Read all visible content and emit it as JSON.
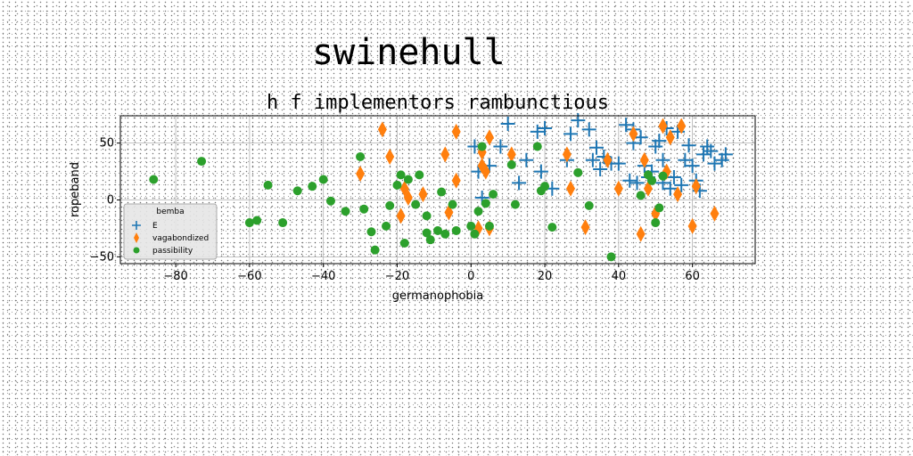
{
  "page": {
    "title": "swinehull"
  },
  "chart_data": {
    "type": "scatter",
    "title": "h f implementors rambunctious",
    "xlabel": "germanophobia",
    "ylabel": "ropeband",
    "xlim": [
      -95,
      77
    ],
    "ylim": [
      -56,
      74
    ],
    "xticks": [
      -80,
      -60,
      -40,
      -20,
      0,
      20,
      40,
      60
    ],
    "yticks": [
      -50,
      0,
      50
    ],
    "grid": true,
    "legend": {
      "title": "bemba",
      "placement": "lower-left"
    },
    "series": [
      {
        "name": "E",
        "marker": "plus",
        "color": "#1f77b4",
        "points": [
          [
            10,
            67
          ],
          [
            13,
            15
          ],
          [
            15,
            35
          ],
          [
            18,
            60
          ],
          [
            19,
            25
          ],
          [
            20,
            63
          ],
          [
            22,
            10
          ],
          [
            26,
            35
          ],
          [
            27,
            58
          ],
          [
            29,
            70
          ],
          [
            32,
            62
          ],
          [
            33,
            35
          ],
          [
            34,
            46
          ],
          [
            35,
            27
          ],
          [
            36,
            38
          ],
          [
            38,
            32
          ],
          [
            40,
            32
          ],
          [
            42,
            66
          ],
          [
            43,
            17
          ],
          [
            44,
            62
          ],
          [
            44,
            50
          ],
          [
            45,
            15
          ],
          [
            46,
            55
          ],
          [
            47,
            30
          ],
          [
            48,
            20
          ],
          [
            49,
            25
          ],
          [
            50,
            47
          ],
          [
            51,
            52
          ],
          [
            52,
            15
          ],
          [
            52,
            35
          ],
          [
            53,
            63
          ],
          [
            54,
            10
          ],
          [
            55,
            20
          ],
          [
            56,
            60
          ],
          [
            57,
            13
          ],
          [
            58,
            35
          ],
          [
            59,
            48
          ],
          [
            60,
            30
          ],
          [
            61,
            17
          ],
          [
            62,
            8
          ],
          [
            63,
            40
          ],
          [
            64,
            47
          ],
          [
            65,
            43
          ],
          [
            66,
            32
          ],
          [
            68,
            35
          ],
          [
            69,
            40
          ],
          [
            1,
            47
          ],
          [
            2,
            25
          ],
          [
            3,
            2
          ],
          [
            5,
            30
          ],
          [
            8,
            47
          ]
        ]
      },
      {
        "name": "vagabondized",
        "marker": "diamond",
        "color": "#ff7f0e",
        "points": [
          [
            -24,
            62
          ],
          [
            -22,
            38
          ],
          [
            -30,
            23
          ],
          [
            -18,
            10
          ],
          [
            -19,
            -14
          ],
          [
            -17,
            2
          ],
          [
            -13,
            5
          ],
          [
            -7,
            40
          ],
          [
            -6,
            -11
          ],
          [
            -4,
            17
          ],
          [
            -4,
            60
          ],
          [
            2,
            -25
          ],
          [
            3,
            30
          ],
          [
            3,
            42
          ],
          [
            4,
            25
          ],
          [
            5,
            -25
          ],
          [
            5,
            55
          ],
          [
            11,
            40
          ],
          [
            26,
            40
          ],
          [
            27,
            10
          ],
          [
            31,
            -24
          ],
          [
            37,
            35
          ],
          [
            40,
            10
          ],
          [
            44,
            58
          ],
          [
            46,
            -30
          ],
          [
            47,
            35
          ],
          [
            48,
            10
          ],
          [
            52,
            65
          ],
          [
            53,
            25
          ],
          [
            54,
            55
          ],
          [
            56,
            5
          ],
          [
            57,
            65
          ],
          [
            60,
            -23
          ],
          [
            61,
            12
          ],
          [
            66,
            -12
          ],
          [
            50,
            -12
          ]
        ]
      },
      {
        "name": "passibility",
        "marker": "circle",
        "color": "#2ca02c",
        "points": [
          [
            -86,
            18
          ],
          [
            -73,
            34
          ],
          [
            -60,
            -20
          ],
          [
            -58,
            -18
          ],
          [
            -55,
            13
          ],
          [
            -51,
            -20
          ],
          [
            -47,
            8
          ],
          [
            -43,
            12
          ],
          [
            -40,
            18
          ],
          [
            -38,
            -1
          ],
          [
            -34,
            -10
          ],
          [
            -30,
            38
          ],
          [
            -29,
            -8
          ],
          [
            -27,
            -28
          ],
          [
            -26,
            -44
          ],
          [
            -23,
            -23
          ],
          [
            -22,
            -5
          ],
          [
            -20,
            13
          ],
          [
            -19,
            22
          ],
          [
            -18,
            -38
          ],
          [
            -17,
            18
          ],
          [
            -15,
            -4
          ],
          [
            -14,
            22
          ],
          [
            -12,
            -29
          ],
          [
            -12,
            -14
          ],
          [
            -11,
            -35
          ],
          [
            -9,
            -27
          ],
          [
            -8,
            7
          ],
          [
            -7,
            -30
          ],
          [
            -5,
            -4
          ],
          [
            -4,
            -27
          ],
          [
            0,
            -23
          ],
          [
            1,
            -30
          ],
          [
            2,
            -10
          ],
          [
            3,
            47
          ],
          [
            4,
            -3
          ],
          [
            5,
            -23
          ],
          [
            6,
            5
          ],
          [
            11,
            31
          ],
          [
            12,
            -4
          ],
          [
            18,
            47
          ],
          [
            19,
            8
          ],
          [
            20,
            12
          ],
          [
            22,
            -24
          ],
          [
            29,
            24
          ],
          [
            32,
            -5
          ],
          [
            38,
            -50
          ],
          [
            46,
            4
          ],
          [
            48,
            22
          ],
          [
            49,
            17
          ],
          [
            50,
            -20
          ],
          [
            51,
            -7
          ],
          [
            52,
            21
          ]
        ]
      }
    ]
  }
}
